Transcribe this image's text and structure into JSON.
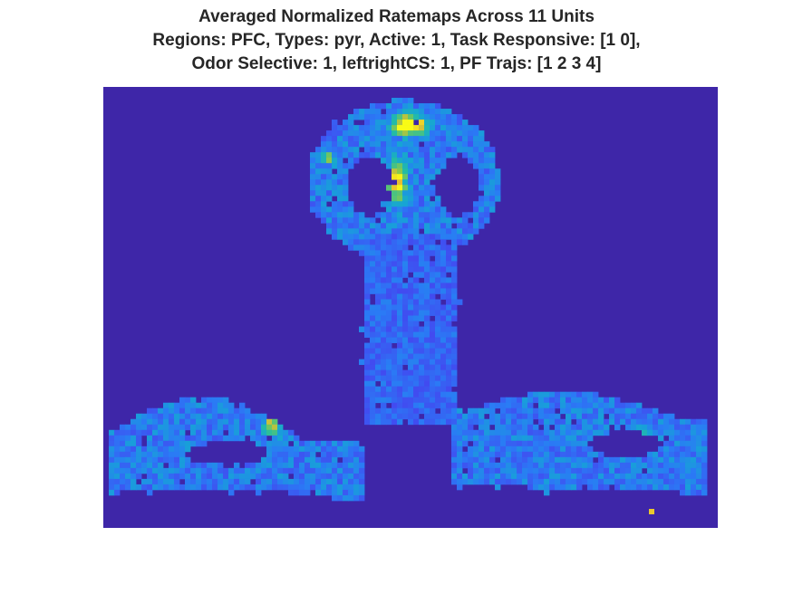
{
  "figure": {
    "title_lines": [
      "Averaged Normalized Ratemaps Across 11 Units",
      "Regions: PFC, Types: pyr, Active: 1, Task Responsive: [1 0],",
      "Odor Selective: 1, leftrightCS: 1, PF Trajs: [1 2 3 4]"
    ]
  },
  "chart_data": {
    "type": "heatmap",
    "title": "Averaged Normalized Ratemaps Across 11 Units",
    "subtitle": "Regions: PFC, Types: pyr, Active: 1, Task Responsive: [1 0], Odor Selective: 1, leftrightCS: 1, PF Trajs: [1 2 3 4]",
    "xlabel": "",
    "ylabel": "",
    "colormap": "parula",
    "axes_visible": false,
    "background_color": "#3e26a8",
    "hotspots": [
      {
        "region": "top of center arm / reward area",
        "value": 0.95
      },
      {
        "region": "upper loop center",
        "value": 0.7
      },
      {
        "region": "right arm isolated pixel",
        "value": 0.9
      }
    ],
    "occupied_shape": "T-maze with circular loop at top of stem and two curved side arms at bottom",
    "typical_value_range": [
      0.1,
      0.5
    ]
  }
}
